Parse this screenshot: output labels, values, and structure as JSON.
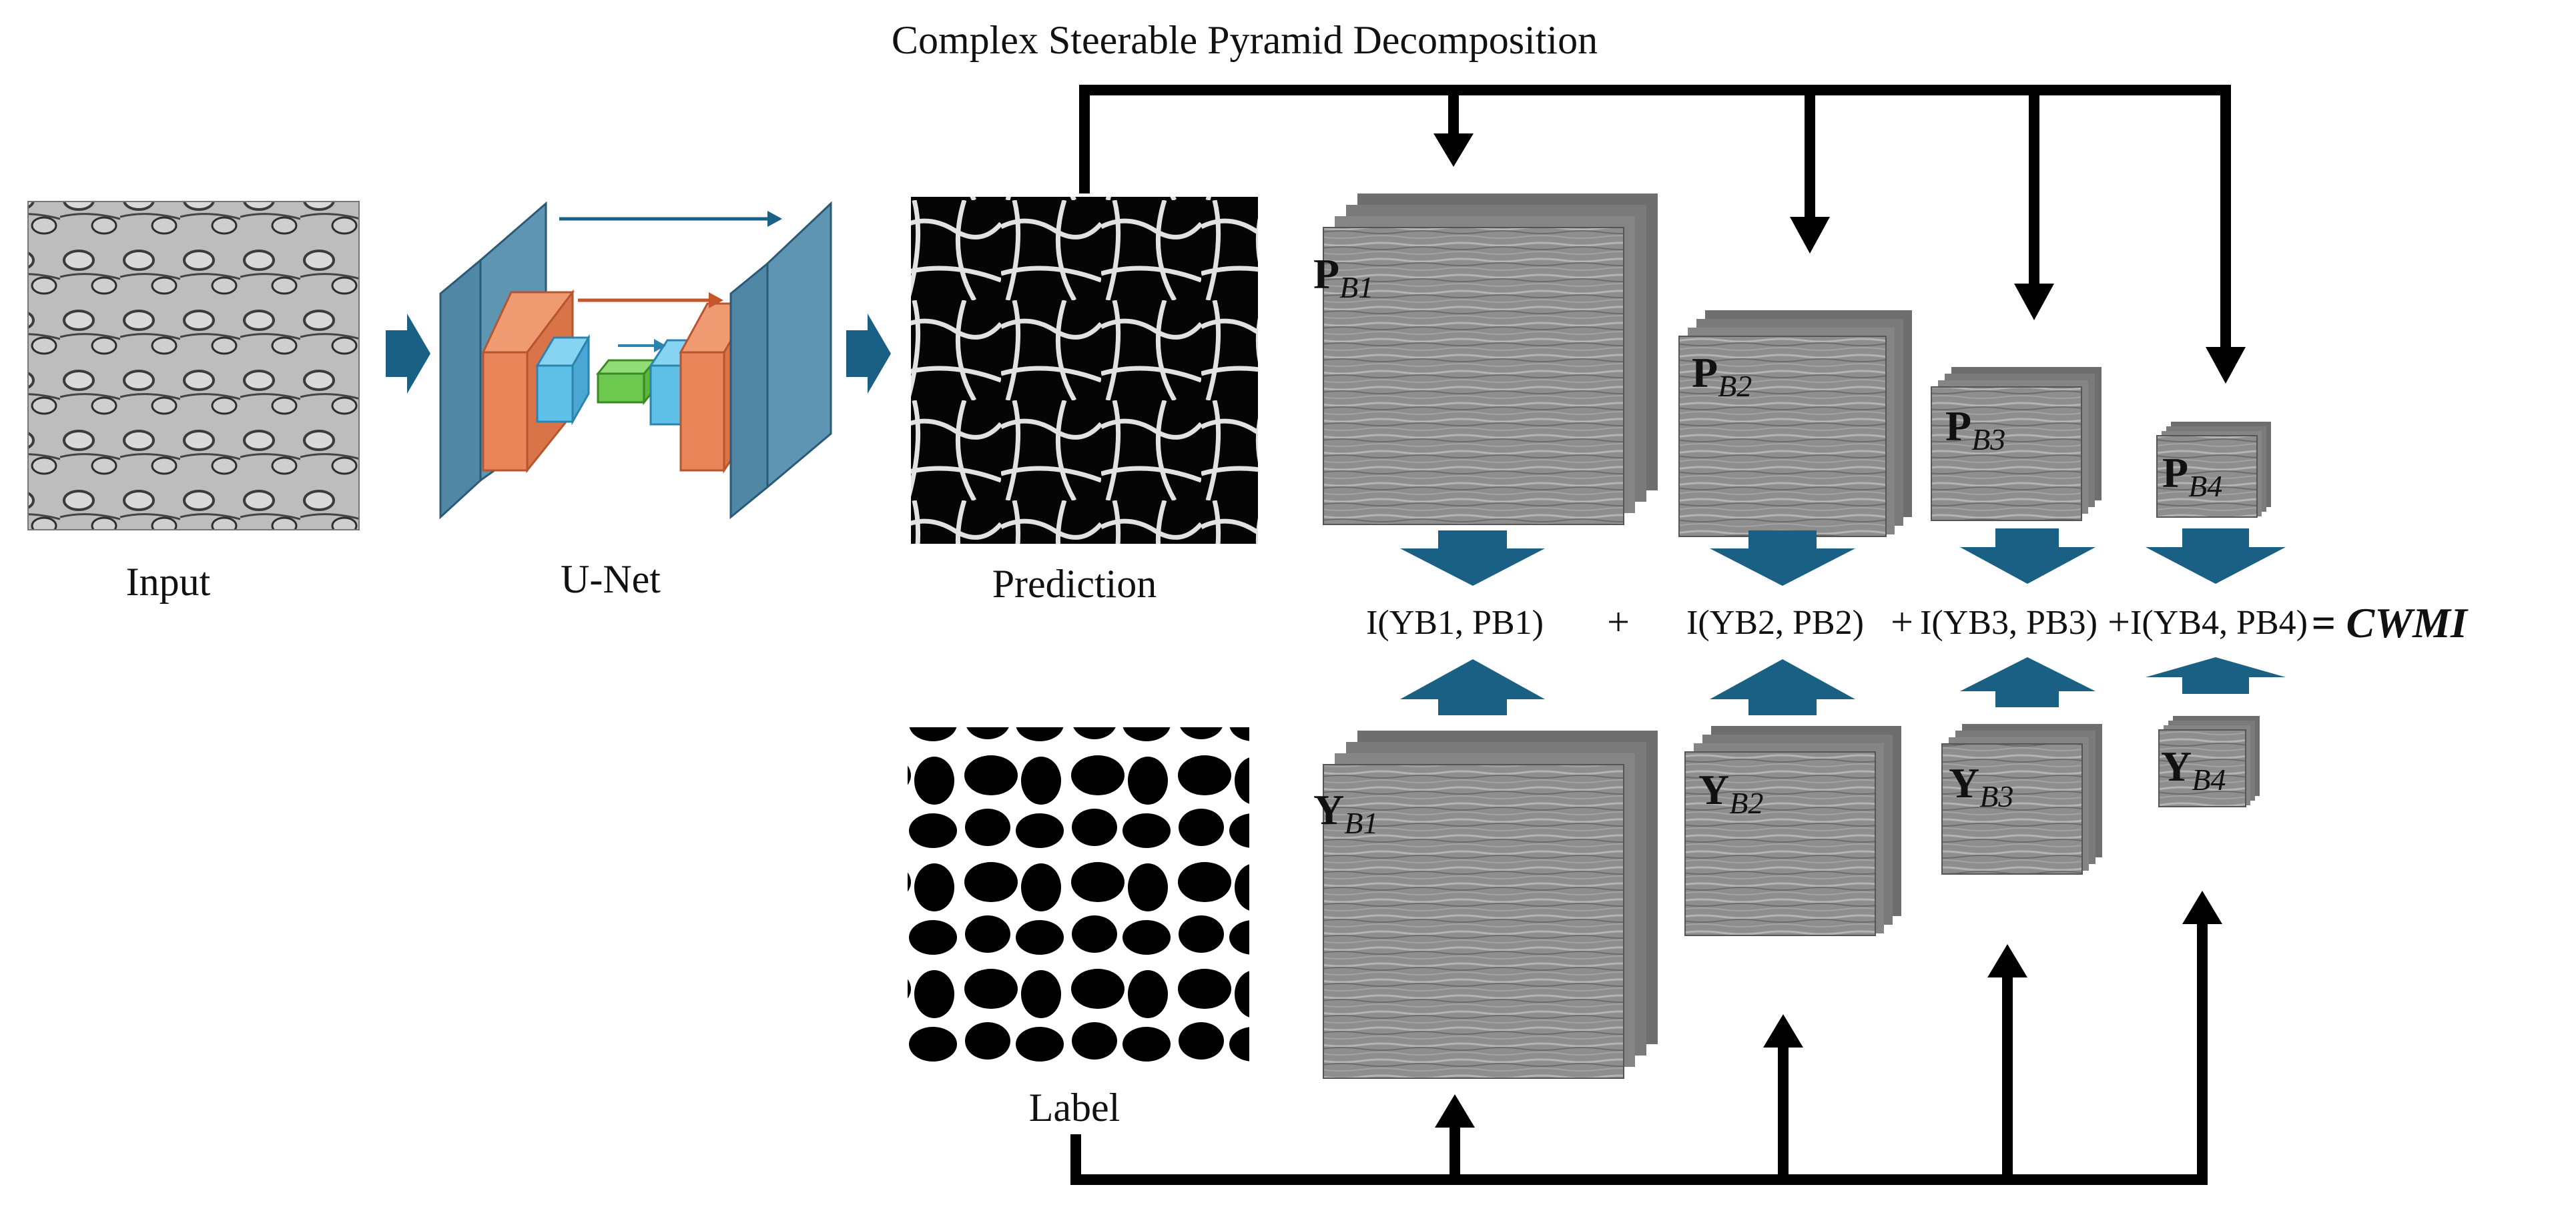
{
  "title": "Complex Steerable Pyramid Decomposition",
  "labels": {
    "input": "Input",
    "unet": "U-Net",
    "prediction": "Prediction",
    "label": "Label"
  },
  "pred_bands": [
    {
      "sym": "P",
      "sub": "B1"
    },
    {
      "sym": "P",
      "sub": "B2"
    },
    {
      "sym": "P",
      "sub": "B3"
    },
    {
      "sym": "P",
      "sub": "B4"
    }
  ],
  "label_bands": [
    {
      "sym": "Y",
      "sub": "B1"
    },
    {
      "sym": "Y",
      "sub": "B2"
    },
    {
      "sym": "Y",
      "sub": "B3"
    },
    {
      "sym": "Y",
      "sub": "B4"
    }
  ],
  "terms": [
    "I(YB1, PB1)",
    "I(YB2, PB2)",
    "I(YB3, PB3)",
    "I(YB4, PB4)"
  ],
  "operators": [
    "+",
    "+",
    "+"
  ],
  "result": "= CWMI",
  "colors": {
    "arrow_blue": "#1a5f84",
    "unet_blue": "#4f87a5",
    "unet_orange": "#e8865a",
    "unet_cyan": "#5fc0e8",
    "unet_green": "#6cc84e",
    "band_gray": "#8a8a8a"
  }
}
